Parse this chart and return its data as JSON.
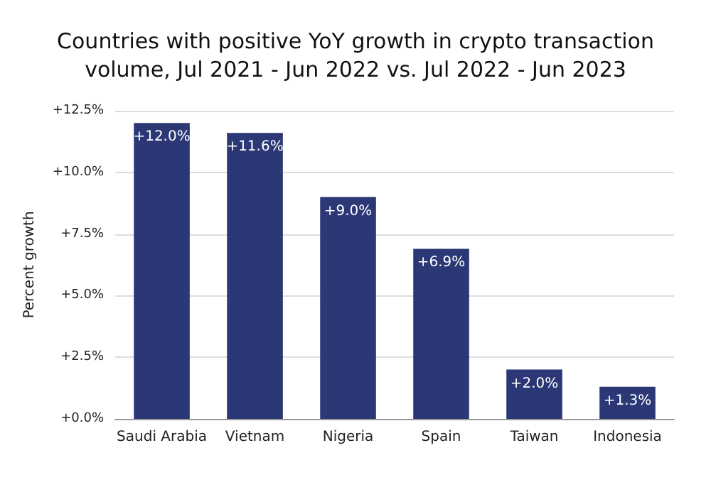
{
  "chart_data": {
    "type": "bar",
    "title": "Countries with positive YoY growth in crypto transaction\nvolume, Jul 2021 - Jun 2022 vs. Jul 2022 - Jun 2023",
    "ylabel": "Percent growth",
    "categories": [
      "Saudi Arabia",
      "Vietnam",
      "Nigeria",
      "Spain",
      "Taiwan",
      "Indonesia"
    ],
    "values": [
      12.0,
      11.6,
      9.0,
      6.9,
      2.0,
      1.3
    ],
    "value_labels": [
      "+12.0%",
      "+11.6%",
      "+9.0%",
      "+6.9%",
      "+2.0%",
      "+1.3%"
    ],
    "color": "#2b3875",
    "ylim": [
      0,
      12.5
    ],
    "yticks": [
      {
        "value": 0,
        "label": "+0.0%"
      },
      {
        "value": 2.5,
        "label": "+2.5%"
      },
      {
        "value": 5,
        "label": "+5.0%"
      },
      {
        "value": 7.5,
        "label": "+7.5%"
      },
      {
        "value": 10,
        "label": "+10.0%"
      },
      {
        "value": 12.5,
        "label": "+12.5%"
      }
    ],
    "grid": "y"
  }
}
